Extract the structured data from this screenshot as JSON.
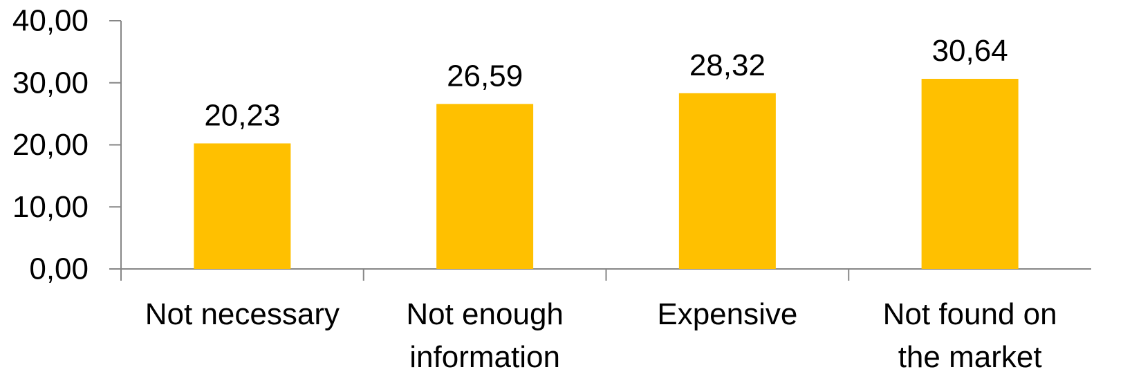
{
  "chart_data": {
    "type": "bar",
    "title": "",
    "xlabel": "",
    "ylabel": "",
    "categories": [
      "Not necessary",
      "Not enough information",
      "Expensive",
      "Not found on the market"
    ],
    "category_lines": [
      [
        "Not necessary"
      ],
      [
        "Not enough",
        "information"
      ],
      [
        "Expensive"
      ],
      [
        "Not found on",
        "the market"
      ]
    ],
    "values": [
      20.23,
      26.59,
      28.32,
      30.64
    ],
    "value_labels": [
      "20,23",
      "26,59",
      "28,32",
      "30,64"
    ],
    "ylim": [
      0,
      40
    ],
    "yticks": [
      0,
      10,
      20,
      30,
      40
    ],
    "ytick_labels": [
      "0,00",
      "10,00",
      "20,00",
      "30,00",
      "40,00"
    ],
    "bar_color": "#FFC000",
    "axis_color": "#868686",
    "grid": false,
    "legend": "none"
  }
}
